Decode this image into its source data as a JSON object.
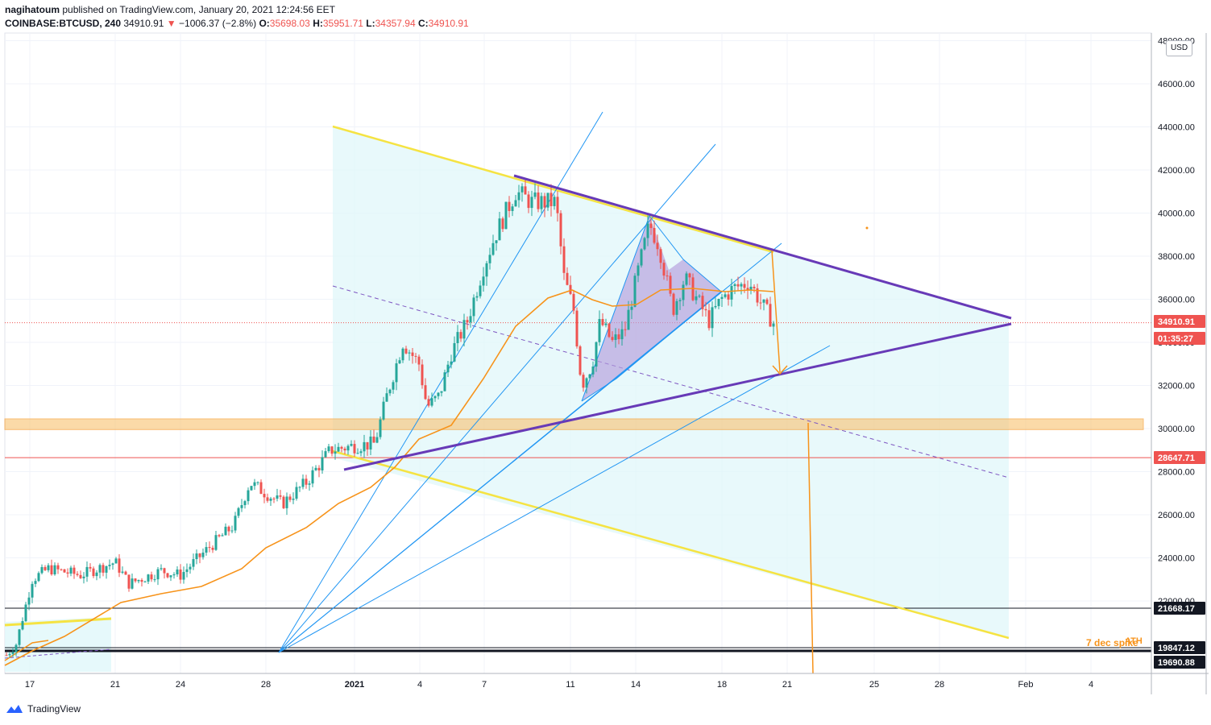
{
  "header": {
    "author": "nagihatoum",
    "published_text": "published on TradingView.com, January 20, 2021 12:24:56 EET",
    "symbol": "COINBASE:BTCUSD, 240",
    "last": "34910.91",
    "change": "−1006.37 (−2.8%)",
    "open_label": "O:",
    "open": "35698.03",
    "high_label": "H:",
    "high": "35951.71",
    "low_label": "L:",
    "low": "34357.94",
    "close_label": "C:",
    "close": "34910.91"
  },
  "currency_button": "USD",
  "logo_text": "TradingView",
  "colors": {
    "up": "#26a69a",
    "down": "#ef5350",
    "yellow": "#f5e342",
    "purple": "#673ab7",
    "blue": "#2196f3",
    "orange": "#f7931a",
    "fill": "#e0f7fa",
    "zone": "#f9c270"
  },
  "chart_data": {
    "type": "candlestick",
    "y_axis": {
      "ticks": [
        "48000.00",
        "46000.00",
        "44000.00",
        "42000.00",
        "40000.00",
        "38000.00",
        "36000.00",
        "34000.00",
        "32000.00",
        "30000.00",
        "28000.00",
        "26000.00",
        "24000.00",
        "22000.00"
      ],
      "range": [
        18600,
        48000
      ]
    },
    "x_axis": {
      "ticks": [
        "17",
        "21",
        "24",
        "28",
        "2021",
        "4",
        "7",
        "11",
        "14",
        "18",
        "21",
        "25",
        "28",
        "Feb",
        "4"
      ]
    },
    "price_tags": [
      {
        "label": "34910.91",
        "color": "#ef5350"
      },
      {
        "label": "01:35:27",
        "color": "#ef5350"
      },
      {
        "label": "28647.71",
        "color": "#ef5350"
      },
      {
        "label": "21668.17",
        "color": "#131722"
      },
      {
        "label": "19847.12",
        "color": "#131722"
      },
      {
        "label": "19690.88",
        "color": "#131722"
      }
    ],
    "annotations": [
      {
        "text": "ATH",
        "color": "#f7931a"
      },
      {
        "text": "7 dec spike",
        "color": "#f7931a"
      }
    ],
    "horizontal_levels": [
      34910.91,
      28647.71,
      21668.17,
      19847.12,
      19690.88
    ],
    "support_zone": [
      30100,
      30300
    ],
    "last_price": 34910.91
  }
}
